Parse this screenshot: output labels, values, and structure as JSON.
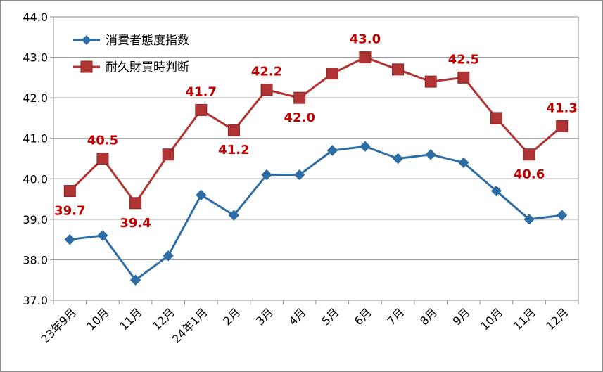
{
  "chart_data": {
    "type": "line",
    "categories": [
      "23年9月",
      "10月",
      "11月",
      "12月",
      "24年1月",
      "2月",
      "3月",
      "4月",
      "5月",
      "6月",
      "7月",
      "8月",
      "9月",
      "10月",
      "11月",
      "12月"
    ],
    "ylim": [
      37.0,
      44.0
    ],
    "yticks": [
      "37.0",
      "38.0",
      "39.0",
      "40.0",
      "41.0",
      "42.0",
      "43.0",
      "44.0"
    ],
    "grid": true,
    "legend_position": "top-left",
    "series": [
      {
        "name": "消費者態度指数",
        "color": "#2e6da4",
        "marker": "diamond",
        "values": [
          38.5,
          38.6,
          37.5,
          38.1,
          39.6,
          39.1,
          40.1,
          40.1,
          40.7,
          40.8,
          40.5,
          40.6,
          40.4,
          39.7,
          39.0,
          39.1
        ]
      },
      {
        "name": "耐久財買時判断",
        "color": "#b03434",
        "marker": "square",
        "values": [
          39.7,
          40.5,
          39.4,
          40.6,
          41.7,
          41.2,
          42.2,
          42.0,
          42.6,
          43.0,
          42.7,
          42.4,
          42.5,
          41.5,
          40.6,
          41.3
        ]
      }
    ],
    "data_labels": [
      {
        "series": 1,
        "index": 0,
        "text": "39.7",
        "pos": "below"
      },
      {
        "series": 1,
        "index": 1,
        "text": "40.5",
        "pos": "above"
      },
      {
        "series": 1,
        "index": 2,
        "text": "39.4",
        "pos": "below"
      },
      {
        "series": 1,
        "index": 4,
        "text": "41.7",
        "pos": "above"
      },
      {
        "series": 1,
        "index": 5,
        "text": "41.2",
        "pos": "below"
      },
      {
        "series": 1,
        "index": 6,
        "text": "42.2",
        "pos": "above"
      },
      {
        "series": 1,
        "index": 7,
        "text": "42.0",
        "pos": "below"
      },
      {
        "series": 1,
        "index": 9,
        "text": "43.0",
        "pos": "above"
      },
      {
        "series": 1,
        "index": 12,
        "text": "42.5",
        "pos": "above"
      },
      {
        "series": 1,
        "index": 14,
        "text": "40.6",
        "pos": "below"
      },
      {
        "series": 1,
        "index": 15,
        "text": "41.3",
        "pos": "above"
      }
    ]
  }
}
